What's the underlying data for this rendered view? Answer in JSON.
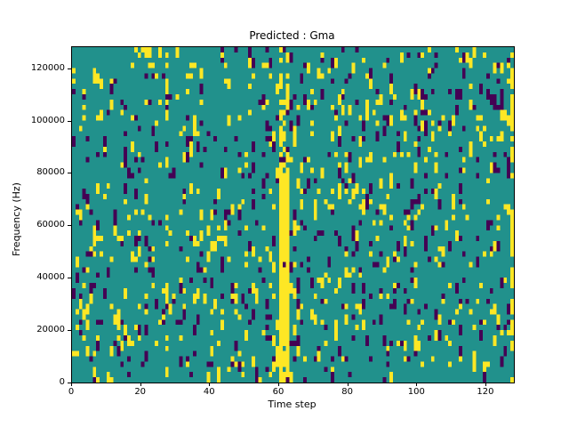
{
  "chart_data": {
    "type": "heatmap",
    "title": "Predicted : Gma",
    "xlabel": "Time step",
    "ylabel": "Frequency (Hz)",
    "xlim": [
      0,
      128
    ],
    "ylim": [
      0,
      128000
    ],
    "x_ticks": [
      0,
      20,
      40,
      60,
      80,
      100,
      120
    ],
    "y_ticks": [
      0,
      20000,
      40000,
      60000,
      80000,
      100000,
      120000
    ],
    "grid": {
      "cols": 128,
      "rows": 64
    },
    "palette": {
      "mid_background": "#21918c",
      "low": "#440154",
      "high": "#fde725"
    },
    "value_meaning": {
      "0": "low (dark purple)",
      "1": "mid (teal background)",
      "2": "high (yellow)"
    },
    "scatter_densities": {
      "high_yellow": 0.065,
      "low_purple": 0.055
    },
    "high_band": {
      "col_start": 60,
      "col_end": 62,
      "solid_below_hz": 82000,
      "high_prob_solid": 0.95,
      "high_prob_upper": 0.45
    },
    "secondary_streak": {
      "col": 27,
      "high_prob": 0.3
    },
    "right_edge_col_high_prob": 0.55,
    "legend": "none",
    "grid_lines": false,
    "seed": 42
  }
}
